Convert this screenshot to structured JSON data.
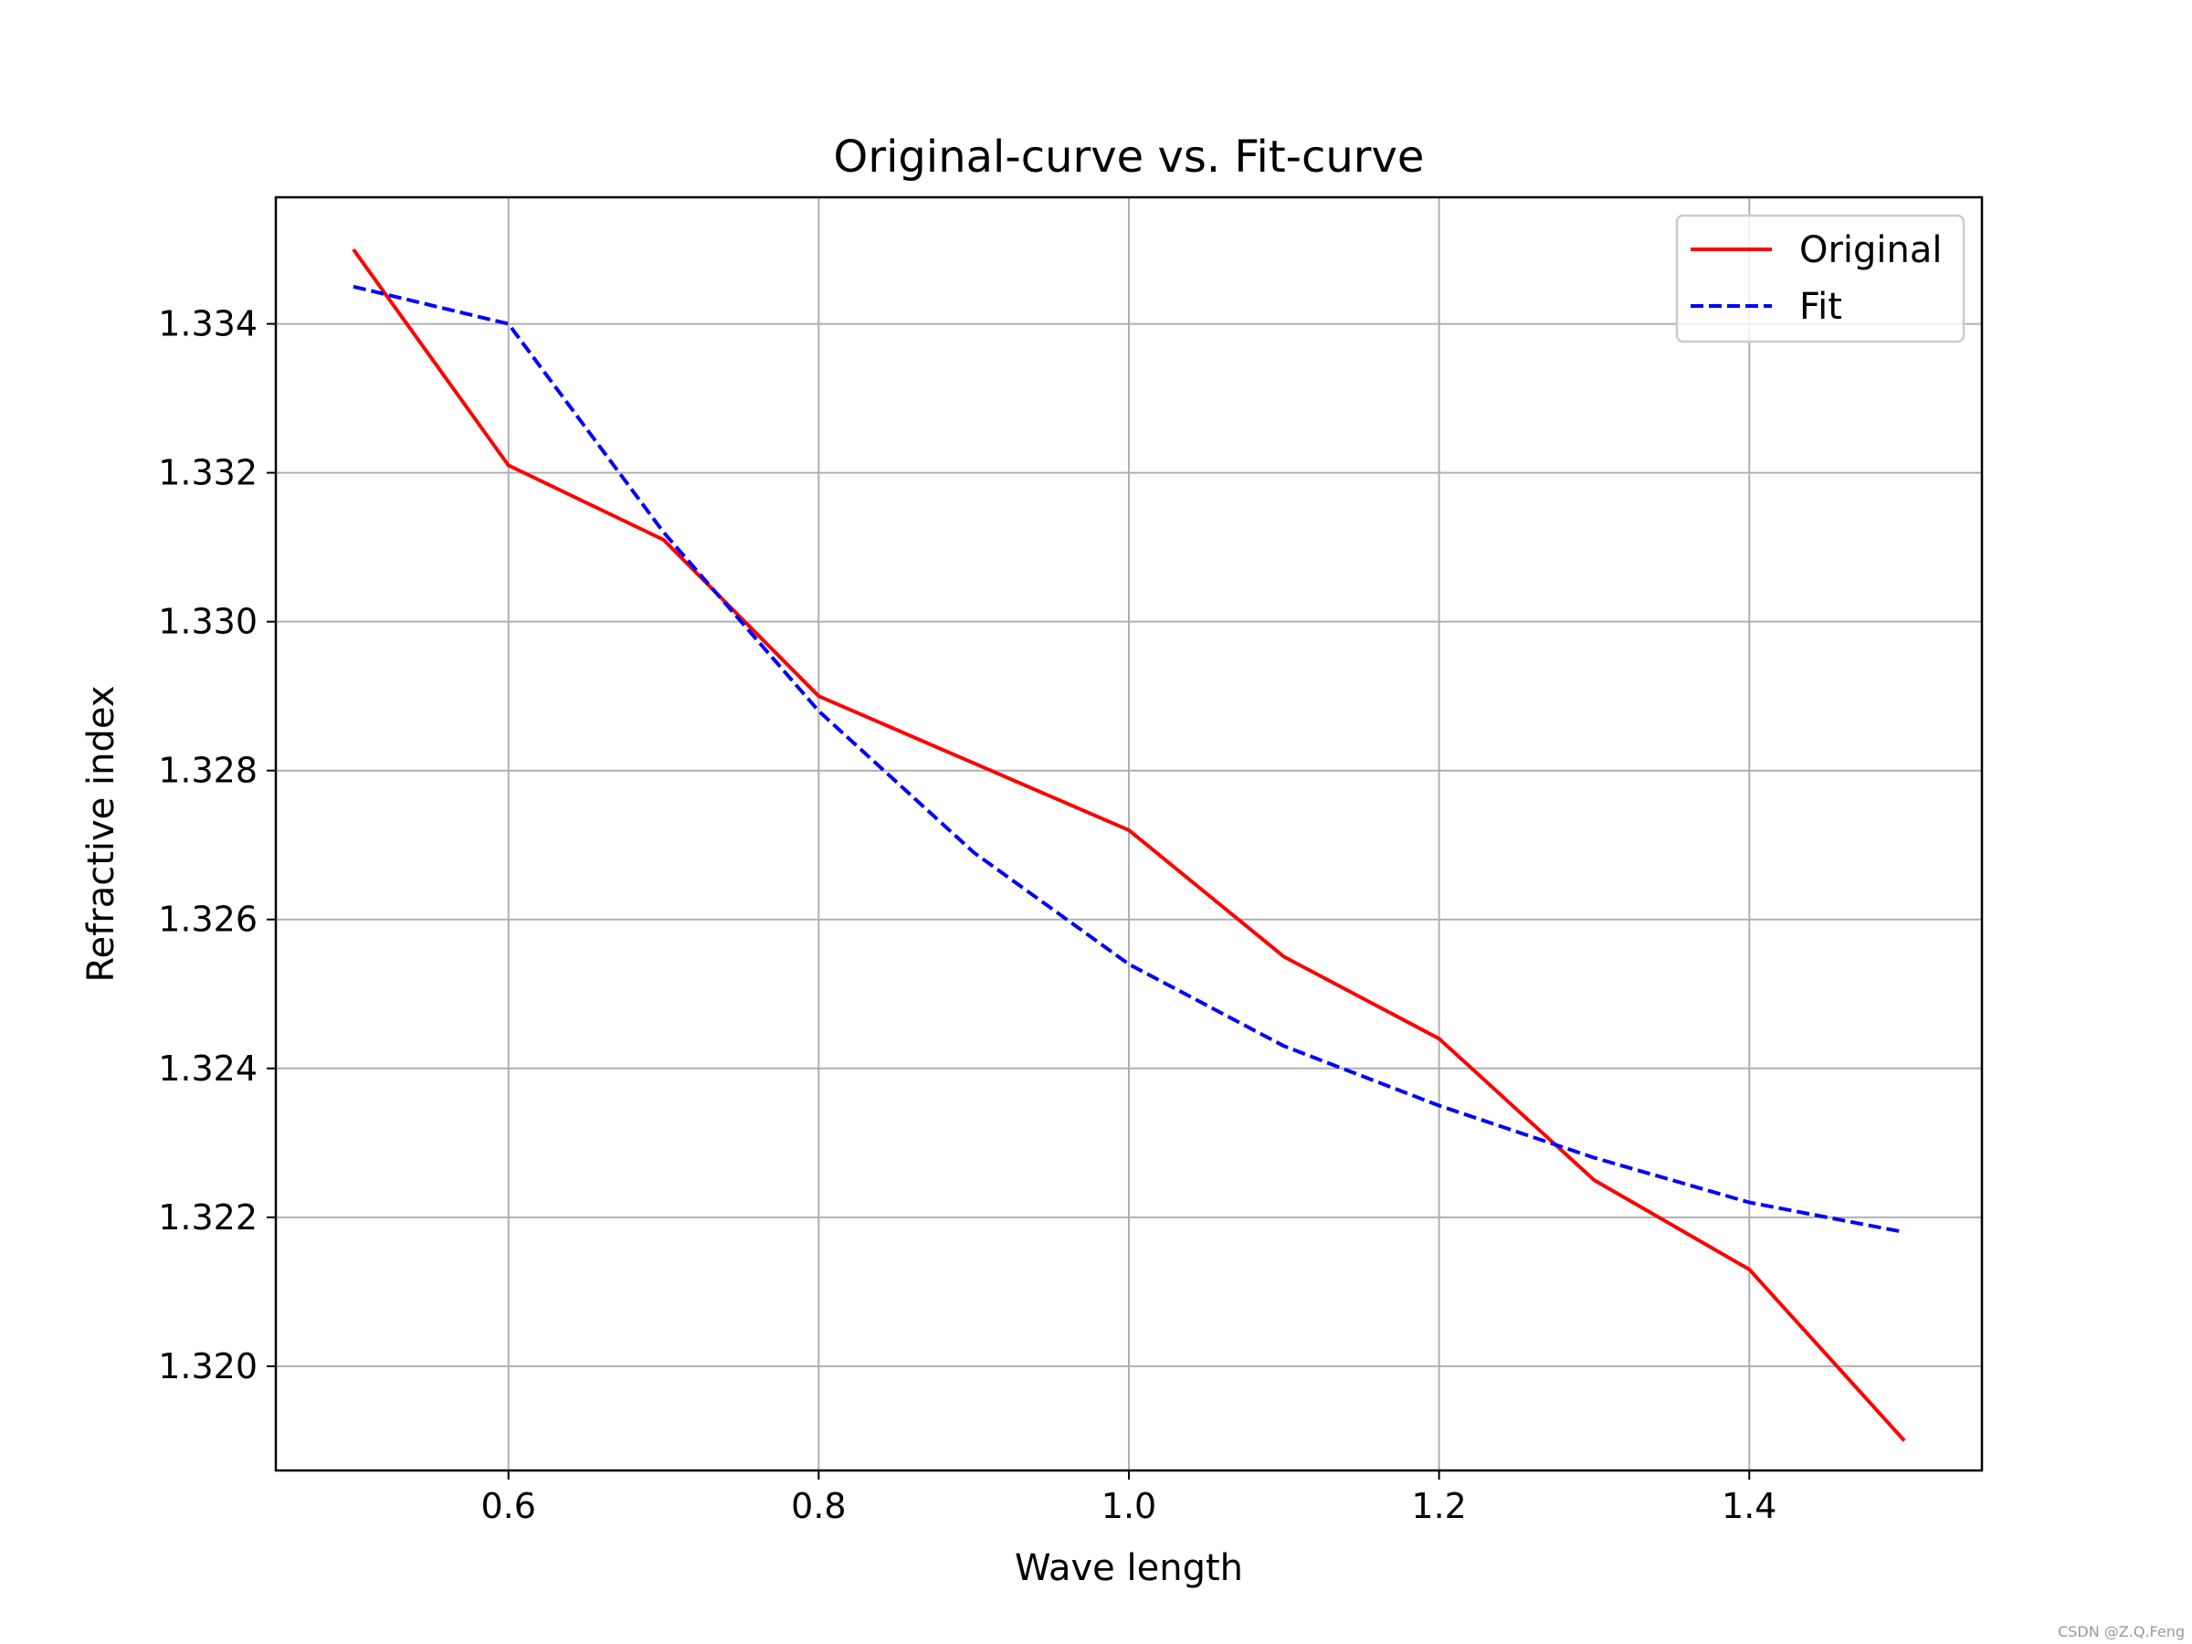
{
  "chart_data": {
    "type": "line",
    "title": "Original-curve vs. Fit-curve",
    "xlabel": "Wave length",
    "ylabel": "Refractive index",
    "xlim": [
      0.45,
      1.55
    ],
    "ylim": [
      1.3186,
      1.3357
    ],
    "xticks": [
      0.6,
      0.8,
      1.0,
      1.2,
      1.4
    ],
    "xtick_labels": [
      "0.6",
      "0.8",
      "1.0",
      "1.2",
      "1.4"
    ],
    "yticks": [
      1.32,
      1.322,
      1.324,
      1.326,
      1.328,
      1.33,
      1.332,
      1.334
    ],
    "ytick_labels": [
      "1.320",
      "1.322",
      "1.324",
      "1.326",
      "1.328",
      "1.330",
      "1.332",
      "1.334"
    ],
    "grid": true,
    "legend_position": "top-right",
    "series": [
      {
        "name": "Original",
        "color": "#ff0000",
        "style": "solid",
        "x": [
          0.5,
          0.6,
          0.7,
          0.8,
          0.9,
          1.0,
          1.1,
          1.2,
          1.3,
          1.4,
          1.5
        ],
        "y": [
          1.335,
          1.3321,
          1.3311,
          1.329,
          1.3281,
          1.3272,
          1.3255,
          1.3244,
          1.3225,
          1.3213,
          1.319
        ]
      },
      {
        "name": "Fit",
        "color": "#0000ff",
        "style": "dashed",
        "x": [
          0.5,
          0.6,
          0.7,
          0.8,
          0.9,
          1.0,
          1.1,
          1.2,
          1.3,
          1.4,
          1.5
        ],
        "y": [
          1.3345,
          1.334,
          1.3312,
          1.3288,
          1.3269,
          1.3254,
          1.3243,
          1.3235,
          1.3228,
          1.3222,
          1.3218
        ]
      }
    ]
  },
  "watermark": "CSDN @Z.Q.Feng"
}
